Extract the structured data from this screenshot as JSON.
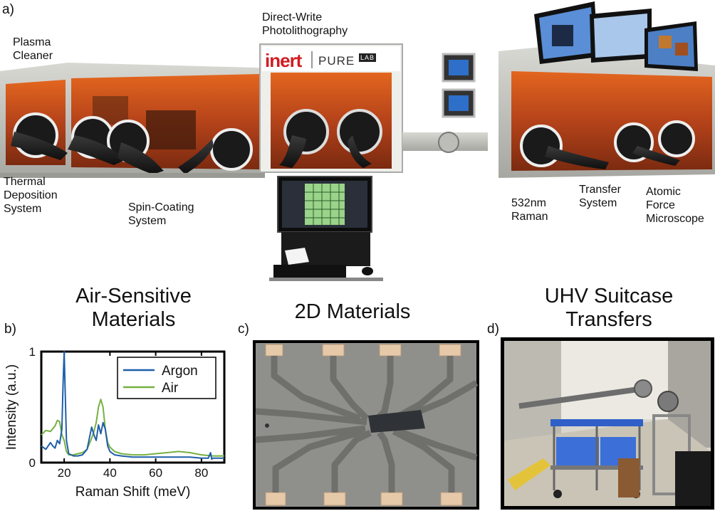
{
  "panel_a": {
    "letter": "a)",
    "labels": {
      "plasma": "Plasma\nCleaner",
      "photolith": "Direct-Write\nPhotolithography",
      "thermal": "Thermal\nDeposition\nSystem",
      "spin": "Spin-Coating\nSystem",
      "raman532": "532nm\nRaman",
      "transfer": "Transfer\nSystem",
      "afm": "Atomic\nForce\nMicroscope"
    },
    "brand_left": "inert",
    "brand_right": "PURE",
    "brand_badge": "LAB"
  },
  "panel_b": {
    "letter": "b)",
    "title": "Air-Sensitive\nMaterials"
  },
  "panel_c": {
    "letter": "c)",
    "title": "2D Materials"
  },
  "panel_d": {
    "letter": "d)",
    "title": "UHV Suitcase\nTransfers"
  },
  "chart_data": {
    "type": "line",
    "xlabel": "Raman Shift (meV)",
    "ylabel": "Intensity (a.u.)",
    "xlim": [
      10,
      90
    ],
    "ylim": [
      0,
      1
    ],
    "xticks": [
      20,
      40,
      60,
      80
    ],
    "yticks": [
      0,
      1
    ],
    "legend": "top-right",
    "grid": false,
    "series": [
      {
        "name": "Argon",
        "color": "#1f5fa8",
        "x": [
          10,
          12,
          14,
          15,
          16,
          17,
          18,
          19,
          19.5,
          20,
          20.5,
          21,
          22,
          24,
          26,
          28,
          30,
          31,
          32,
          33,
          34,
          35,
          36,
          37,
          38,
          39,
          40,
          42,
          45,
          50,
          55,
          60,
          65,
          70,
          75,
          80,
          83,
          84,
          84.5,
          85,
          86,
          90
        ],
        "y": [
          0.15,
          0.12,
          0.18,
          0.15,
          0.13,
          0.2,
          0.17,
          0.3,
          0.7,
          1.0,
          0.6,
          0.2,
          0.08,
          0.06,
          0.06,
          0.07,
          0.12,
          0.22,
          0.32,
          0.25,
          0.2,
          0.34,
          0.26,
          0.36,
          0.3,
          0.15,
          0.1,
          0.07,
          0.06,
          0.05,
          0.05,
          0.05,
          0.05,
          0.05,
          0.05,
          0.04,
          0.04,
          0.09,
          0.03,
          0.04,
          0.04,
          0.04
        ]
      },
      {
        "name": "Air",
        "color": "#76b041",
        "x": [
          10,
          12,
          14,
          16,
          17,
          18,
          19,
          20,
          21,
          22,
          24,
          26,
          28,
          30,
          32,
          33,
          34,
          35,
          36,
          37,
          38,
          39,
          40,
          42,
          45,
          50,
          55,
          60,
          65,
          70,
          75,
          80,
          85,
          90
        ],
        "y": [
          0.25,
          0.29,
          0.28,
          0.33,
          0.38,
          0.37,
          0.25,
          0.2,
          0.1,
          0.07,
          0.07,
          0.08,
          0.09,
          0.12,
          0.22,
          0.28,
          0.36,
          0.5,
          0.57,
          0.5,
          0.3,
          0.18,
          0.14,
          0.1,
          0.08,
          0.07,
          0.07,
          0.08,
          0.09,
          0.1,
          0.09,
          0.07,
          0.06,
          0.06
        ]
      }
    ]
  }
}
